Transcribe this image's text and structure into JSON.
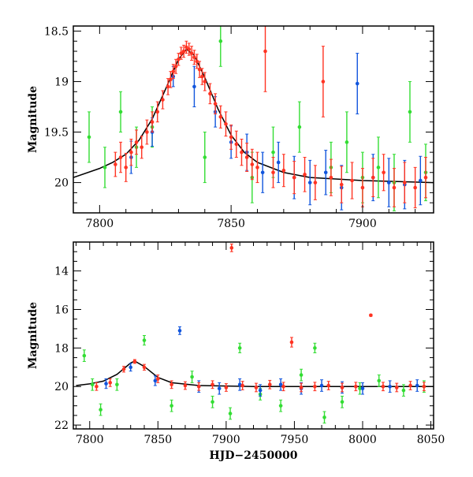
{
  "chart_data": [
    {
      "type": "scatter",
      "panel": "top",
      "title": "",
      "xlabel": "",
      "ylabel": "Magnitude",
      "xlim": [
        7790,
        7927
      ],
      "ylim": [
        20.3,
        18.45
      ],
      "y_inverted": true,
      "x_ticks": [
        7800,
        7850,
        7900
      ],
      "x_tick_labels": [
        "7800",
        "7850",
        "7900"
      ],
      "y_ticks": [
        18.5,
        19,
        19.5,
        20
      ],
      "y_tick_labels": [
        "18.5",
        "19",
        "19.5",
        "20"
      ],
      "model_curve": {
        "color": "#000000",
        "points": [
          [
            7790,
            19.95
          ],
          [
            7800,
            19.86
          ],
          [
            7805,
            19.8
          ],
          [
            7810,
            19.72
          ],
          [
            7815,
            19.58
          ],
          [
            7820,
            19.37
          ],
          [
            7825,
            19.08
          ],
          [
            7830,
            18.78
          ],
          [
            7833,
            18.68
          ],
          [
            7836,
            18.74
          ],
          [
            7840,
            18.96
          ],
          [
            7845,
            19.27
          ],
          [
            7850,
            19.53
          ],
          [
            7855,
            19.7
          ],
          [
            7860,
            19.8
          ],
          [
            7870,
            19.9
          ],
          [
            7880,
            19.95
          ],
          [
            7900,
            19.98
          ],
          [
            7927,
            20.0
          ]
        ]
      },
      "series": [
        {
          "color": "#ff3322",
          "points": [
            [
              7806,
              19.82,
              0.12
            ],
            [
              7808,
              19.75,
              0.15
            ],
            [
              7810,
              19.85,
              0.14
            ],
            [
              7812,
              19.7,
              0.13
            ],
            [
              7814,
              19.6,
              0.12
            ],
            [
              7816,
              19.65,
              0.11
            ],
            [
              7818,
              19.5,
              0.12
            ],
            [
              7820,
              19.4,
              0.1
            ],
            [
              7822,
              19.3,
              0.1
            ],
            [
              7824,
              19.18,
              0.09
            ],
            [
              7826,
              19.05,
              0.08
            ],
            [
              7827,
              18.98,
              0.08
            ],
            [
              7828,
              18.9,
              0.07
            ],
            [
              7829,
              18.85,
              0.07
            ],
            [
              7830,
              18.78,
              0.06
            ],
            [
              7831,
              18.72,
              0.06
            ],
            [
              7832,
              18.7,
              0.06
            ],
            [
              7833,
              18.66,
              0.06
            ],
            [
              7834,
              18.68,
              0.06
            ],
            [
              7835,
              18.72,
              0.07
            ],
            [
              7836,
              18.76,
              0.07
            ],
            [
              7837,
              18.8,
              0.07
            ],
            [
              7838,
              18.88,
              0.08
            ],
            [
              7839,
              18.95,
              0.08
            ],
            [
              7840,
              19.0,
              0.09
            ],
            [
              7842,
              19.12,
              0.1
            ],
            [
              7844,
              19.22,
              0.1
            ],
            [
              7846,
              19.35,
              0.11
            ],
            [
              7848,
              19.42,
              0.12
            ],
            [
              7850,
              19.55,
              0.12
            ],
            [
              7852,
              19.62,
              0.13
            ],
            [
              7854,
              19.7,
              0.13
            ],
            [
              7856,
              19.75,
              0.14
            ],
            [
              7858,
              19.82,
              0.15
            ],
            [
              7860,
              19.85,
              0.15
            ],
            [
              7863,
              18.7,
              0.4
            ],
            [
              7866,
              19.9,
              0.15
            ],
            [
              7870,
              19.88,
              0.16
            ],
            [
              7874,
              19.95,
              0.16
            ],
            [
              7878,
              19.92,
              0.17
            ],
            [
              7882,
              20.0,
              0.17
            ],
            [
              7885,
              19.0,
              0.35
            ],
            [
              7888,
              19.95,
              0.18
            ],
            [
              7892,
              20.02,
              0.18
            ],
            [
              7896,
              19.98,
              0.18
            ],
            [
              7900,
              20.05,
              0.19
            ],
            [
              7904,
              19.95,
              0.19
            ],
            [
              7908,
              19.9,
              0.18
            ],
            [
              7912,
              20.05,
              0.19
            ],
            [
              7916,
              20.0,
              0.2
            ],
            [
              7920,
              20.05,
              0.2
            ],
            [
              7924,
              19.95,
              0.2
            ]
          ]
        },
        {
          "color": "#1155dd",
          "points": [
            [
              7812,
              19.75,
              0.16
            ],
            [
              7820,
              19.5,
              0.14
            ],
            [
              7828,
              18.95,
              0.1
            ],
            [
              7836,
              19.05,
              0.2
            ],
            [
              7844,
              19.3,
              0.15
            ],
            [
              7850,
              19.6,
              0.16
            ],
            [
              7856,
              19.7,
              0.18
            ],
            [
              7862,
              19.9,
              0.2
            ],
            [
              7868,
              19.8,
              0.2
            ],
            [
              7874,
              19.95,
              0.21
            ],
            [
              7880,
              20.0,
              0.22
            ],
            [
              7886,
              19.9,
              0.22
            ],
            [
              7892,
              20.05,
              0.22
            ],
            [
              7898,
              19.02,
              0.3
            ],
            [
              7904,
              19.95,
              0.23
            ],
            [
              7910,
              20.0,
              0.24
            ],
            [
              7916,
              20.02,
              0.24
            ],
            [
              7922,
              19.98,
              0.24
            ]
          ]
        },
        {
          "color": "#33dd33",
          "points": [
            [
              7796,
              19.55,
              0.25
            ],
            [
              7802,
              19.85,
              0.2
            ],
            [
              7808,
              19.3,
              0.2
            ],
            [
              7814,
              19.65,
              0.2
            ],
            [
              7820,
              19.45,
              0.2
            ],
            [
              7840,
              19.75,
              0.25
            ],
            [
              7846,
              18.6,
              0.25
            ],
            [
              7858,
              19.95,
              0.25
            ],
            [
              7866,
              19.7,
              0.25
            ],
            [
              7876,
              19.45,
              0.25
            ],
            [
              7888,
              19.85,
              0.25
            ],
            [
              7894,
              19.6,
              0.3
            ],
            [
              7900,
              19.95,
              0.25
            ],
            [
              7906,
              19.85,
              0.3
            ],
            [
              7912,
              20.0,
              0.28
            ],
            [
              7918,
              19.3,
              0.3
            ],
            [
              7924,
              19.9,
              0.28
            ]
          ]
        }
      ]
    },
    {
      "type": "scatter",
      "panel": "bottom",
      "title": "",
      "xlabel": "HJD−2450000",
      "ylabel": "Magnitude",
      "xlim": [
        7788,
        8052
      ],
      "ylim": [
        22.2,
        12.5
      ],
      "y_inverted": true,
      "x_ticks": [
        7800,
        7850,
        7900,
        7950,
        8000,
        8050
      ],
      "x_tick_labels": [
        "7800",
        "7850",
        "7900",
        "7950",
        "8000",
        "8050"
      ],
      "y_ticks": [
        14,
        16,
        18,
        20,
        22
      ],
      "y_tick_labels": [
        "14",
        "16",
        "18",
        "20",
        "22"
      ],
      "model_curve": {
        "color": "#000000",
        "points": [
          [
            7790,
            19.95
          ],
          [
            7800,
            19.86
          ],
          [
            7810,
            19.72
          ],
          [
            7820,
            19.37
          ],
          [
            7830,
            18.78
          ],
          [
            7833,
            18.68
          ],
          [
            7840,
            18.96
          ],
          [
            7850,
            19.53
          ],
          [
            7860,
            19.8
          ],
          [
            7880,
            19.95
          ],
          [
            7920,
            20.0
          ],
          [
            8052,
            20.0
          ]
        ]
      },
      "series": [
        {
          "color": "#ff3322",
          "points": [
            [
              7805,
              20.0,
              0.2
            ],
            [
              7815,
              19.8,
              0.2
            ],
            [
              7825,
              19.1,
              0.15
            ],
            [
              7833,
              18.7,
              0.1
            ],
            [
              7840,
              19.0,
              0.15
            ],
            [
              7850,
              19.6,
              0.2
            ],
            [
              7860,
              19.9,
              0.2
            ],
            [
              7870,
              19.95,
              0.2
            ],
            [
              7880,
              20.0,
              0.2
            ],
            [
              7890,
              19.9,
              0.2
            ],
            [
              7900,
              20.05,
              0.2
            ],
            [
              7904,
              12.8,
              0.2
            ],
            [
              7912,
              19.95,
              0.22
            ],
            [
              7922,
              20.05,
              0.22
            ],
            [
              7932,
              19.9,
              0.22
            ],
            [
              7942,
              20.0,
              0.22
            ],
            [
              7948,
              17.7,
              0.25
            ],
            [
              7955,
              20.05,
              0.22
            ],
            [
              7965,
              20.0,
              0.22
            ],
            [
              7975,
              19.95,
              0.22
            ],
            [
              7985,
              20.05,
              0.22
            ],
            [
              7995,
              20.0,
              0.22
            ],
            [
              8006,
              16.3,
              0.05
            ],
            [
              8015,
              20.0,
              0.22
            ],
            [
              8025,
              20.05,
              0.22
            ],
            [
              8035,
              19.95,
              0.22
            ],
            [
              8045,
              20.0,
              0.22
            ]
          ]
        },
        {
          "color": "#1155dd",
          "points": [
            [
              7812,
              19.85,
              0.25
            ],
            [
              7830,
              19.0,
              0.2
            ],
            [
              7848,
              19.7,
              0.25
            ],
            [
              7866,
              17.1,
              0.2
            ],
            [
              7880,
              20.0,
              0.3
            ],
            [
              7895,
              20.1,
              0.3
            ],
            [
              7910,
              19.9,
              0.3
            ],
            [
              7925,
              20.2,
              0.3
            ],
            [
              7940,
              19.9,
              0.3
            ],
            [
              7955,
              20.1,
              0.3
            ],
            [
              7970,
              19.95,
              0.3
            ],
            [
              7985,
              20.05,
              0.3
            ],
            [
              8000,
              20.1,
              0.3
            ],
            [
              8020,
              20.0,
              0.3
            ],
            [
              8040,
              19.95,
              0.3
            ]
          ]
        },
        {
          "color": "#33dd33",
          "points": [
            [
              7796,
              18.4,
              0.3
            ],
            [
              7802,
              19.9,
              0.3
            ],
            [
              7808,
              21.2,
              0.3
            ],
            [
              7820,
              19.9,
              0.3
            ],
            [
              7840,
              17.6,
              0.25
            ],
            [
              7860,
              21.0,
              0.3
            ],
            [
              7875,
              19.5,
              0.3
            ],
            [
              7890,
              20.8,
              0.3
            ],
            [
              7903,
              21.4,
              0.3
            ],
            [
              7910,
              18.0,
              0.25
            ],
            [
              7925,
              20.4,
              0.3
            ],
            [
              7940,
              21.0,
              0.3
            ],
            [
              7955,
              19.4,
              0.3
            ],
            [
              7965,
              18.0,
              0.25
            ],
            [
              7972,
              21.6,
              0.3
            ],
            [
              7985,
              20.8,
              0.3
            ],
            [
              7998,
              20.1,
              0.3
            ],
            [
              8012,
              19.7,
              0.3
            ],
            [
              8030,
              20.2,
              0.3
            ],
            [
              8045,
              20.0,
              0.3
            ]
          ]
        }
      ]
    }
  ]
}
